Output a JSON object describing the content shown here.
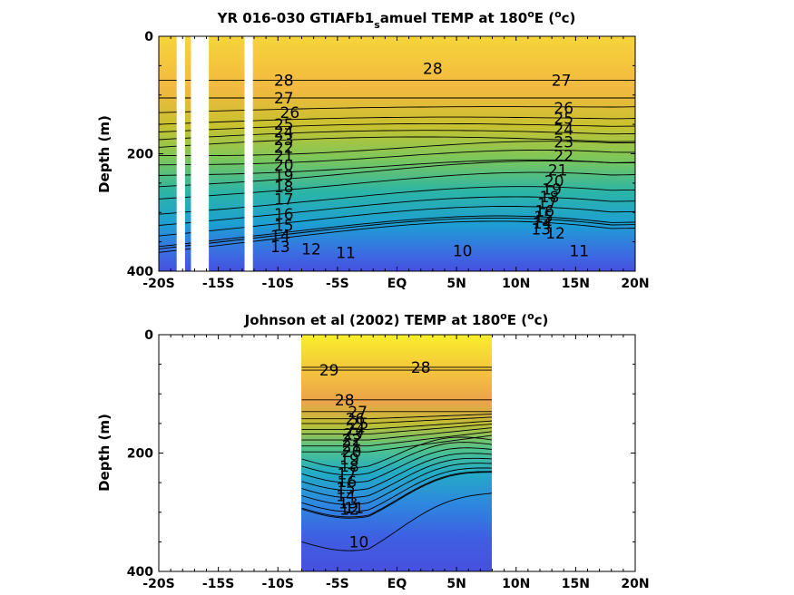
{
  "chart_data": [
    {
      "type": "heatmap",
      "title_main": "YR 016-030 GTIAFb1",
      "title_sub": "s",
      "title_rest": "amuel TEMP at 180",
      "title_deg": "o",
      "title_after_deg": "E (",
      "title_unit_deg": "o",
      "title_unit": "c)",
      "ylabel": "Depth (m)",
      "xlabel": "",
      "xlim": [
        -20,
        20
      ],
      "ylim": [
        0,
        400
      ],
      "x_tick_values": [
        -20,
        -15,
        -10,
        -5,
        0,
        5,
        10,
        15,
        20
      ],
      "x_tick_labels": [
        "-20S",
        "-15S",
        "-10S",
        "-5S",
        "EQ",
        "5N",
        "10N",
        "15N",
        "20N"
      ],
      "y_tick_values": [
        0,
        200,
        400
      ],
      "y_tick_labels": [
        "0",
        "200",
        "400"
      ],
      "data_gaps_lat": [
        [
          -18.5,
          -17.8
        ],
        [
          -17.3,
          -15.8
        ],
        [
          -12.8,
          -12.1
        ]
      ],
      "color_range": [
        10,
        29
      ],
      "contour_labels": [
        {
          "text": "28",
          "x": -9.5,
          "y": 75
        },
        {
          "text": "27",
          "x": -9.5,
          "y": 105
        },
        {
          "text": "26",
          "x": -9.0,
          "y": 130
        },
        {
          "text": "25",
          "x": -9.5,
          "y": 150
        },
        {
          "text": "24",
          "x": -9.5,
          "y": 163
        },
        {
          "text": "23",
          "x": -9.5,
          "y": 176
        },
        {
          "text": "22",
          "x": -9.5,
          "y": 189
        },
        {
          "text": "21",
          "x": -9.5,
          "y": 203
        },
        {
          "text": "20",
          "x": -9.5,
          "y": 219
        },
        {
          "text": "19",
          "x": -9.5,
          "y": 237
        },
        {
          "text": "18",
          "x": -9.5,
          "y": 256
        },
        {
          "text": "17",
          "x": -9.5,
          "y": 277
        },
        {
          "text": "16",
          "x": -9.5,
          "y": 303
        },
        {
          "text": "15",
          "x": -9.5,
          "y": 322
        },
        {
          "text": "14",
          "x": -9.8,
          "y": 340
        },
        {
          "text": "13",
          "x": -9.8,
          "y": 358
        },
        {
          "text": "12",
          "x": -7.2,
          "y": 362
        },
        {
          "text": "11",
          "x": -4.3,
          "y": 368
        },
        {
          "text": "28",
          "x": 3.0,
          "y": 55
        },
        {
          "text": "27",
          "x": 13.8,
          "y": 75
        },
        {
          "text": "26",
          "x": 14.0,
          "y": 122
        },
        {
          "text": "25",
          "x": 14.0,
          "y": 140
        },
        {
          "text": "24",
          "x": 14.0,
          "y": 158
        },
        {
          "text": "23",
          "x": 14.0,
          "y": 180
        },
        {
          "text": "22",
          "x": 14.0,
          "y": 203
        },
        {
          "text": "21",
          "x": 13.5,
          "y": 228
        },
        {
          "text": "20",
          "x": 13.2,
          "y": 246
        },
        {
          "text": "19",
          "x": 13.0,
          "y": 260
        },
        {
          "text": "18",
          "x": 12.8,
          "y": 273
        },
        {
          "text": "17",
          "x": 12.6,
          "y": 285
        },
        {
          "text": "16",
          "x": 12.4,
          "y": 297
        },
        {
          "text": "15",
          "x": 12.3,
          "y": 307
        },
        {
          "text": "14",
          "x": 12.2,
          "y": 318
        },
        {
          "text": "13",
          "x": 12.1,
          "y": 328
        },
        {
          "text": "12",
          "x": 13.3,
          "y": 335
        },
        {
          "text": "11",
          "x": 15.3,
          "y": 365
        },
        {
          "text": "10",
          "x": 5.5,
          "y": 365
        }
      ]
    },
    {
      "type": "heatmap",
      "title_main": "Johnson et al (2002) TEMP at 180",
      "title_deg": "o",
      "title_after_deg": "E (",
      "title_unit_deg": "o",
      "title_unit": "c)",
      "ylabel": "Depth (m)",
      "xlabel": "",
      "xlim": [
        -20,
        20
      ],
      "ylim": [
        0,
        400
      ],
      "x_tick_values": [
        -20,
        -15,
        -10,
        -5,
        0,
        5,
        10,
        15,
        20
      ],
      "x_tick_labels": [
        "-20S",
        "-15S",
        "-10S",
        "-5S",
        "EQ",
        "5N",
        "10N",
        "15N",
        "20N"
      ],
      "y_tick_values": [
        0,
        200,
        400
      ],
      "y_tick_labels": [
        "0",
        "200",
        "400"
      ],
      "data_extent_lat": [
        -8,
        8
      ],
      "color_range": [
        10,
        29
      ],
      "contour_labels": [
        {
          "text": "29",
          "x": -5.7,
          "y": 60
        },
        {
          "text": "28",
          "x": 2.0,
          "y": 55
        },
        {
          "text": "28",
          "x": -4.4,
          "y": 110
        },
        {
          "text": "27",
          "x": -3.3,
          "y": 130
        },
        {
          "text": "26",
          "x": -3.5,
          "y": 142
        },
        {
          "text": "25",
          "x": -3.2,
          "y": 150
        },
        {
          "text": "24",
          "x": -3.5,
          "y": 160
        },
        {
          "text": "23",
          "x": -3.7,
          "y": 168
        },
        {
          "text": "22",
          "x": -3.8,
          "y": 178
        },
        {
          "text": "21",
          "x": -3.8,
          "y": 188
        },
        {
          "text": "20",
          "x": -3.8,
          "y": 198
        },
        {
          "text": "19",
          "x": -4.0,
          "y": 210
        },
        {
          "text": "18",
          "x": -4.0,
          "y": 222
        },
        {
          "text": "17",
          "x": -4.2,
          "y": 235
        },
        {
          "text": "16",
          "x": -4.2,
          "y": 248
        },
        {
          "text": "15",
          "x": -4.3,
          "y": 260
        },
        {
          "text": "14",
          "x": -4.3,
          "y": 272
        },
        {
          "text": "13",
          "x": -4.1,
          "y": 284
        },
        {
          "text": "12",
          "x": -4.0,
          "y": 295
        },
        {
          "text": "11",
          "x": -3.6,
          "y": 293
        },
        {
          "text": "10",
          "x": -3.2,
          "y": 350
        }
      ]
    }
  ]
}
